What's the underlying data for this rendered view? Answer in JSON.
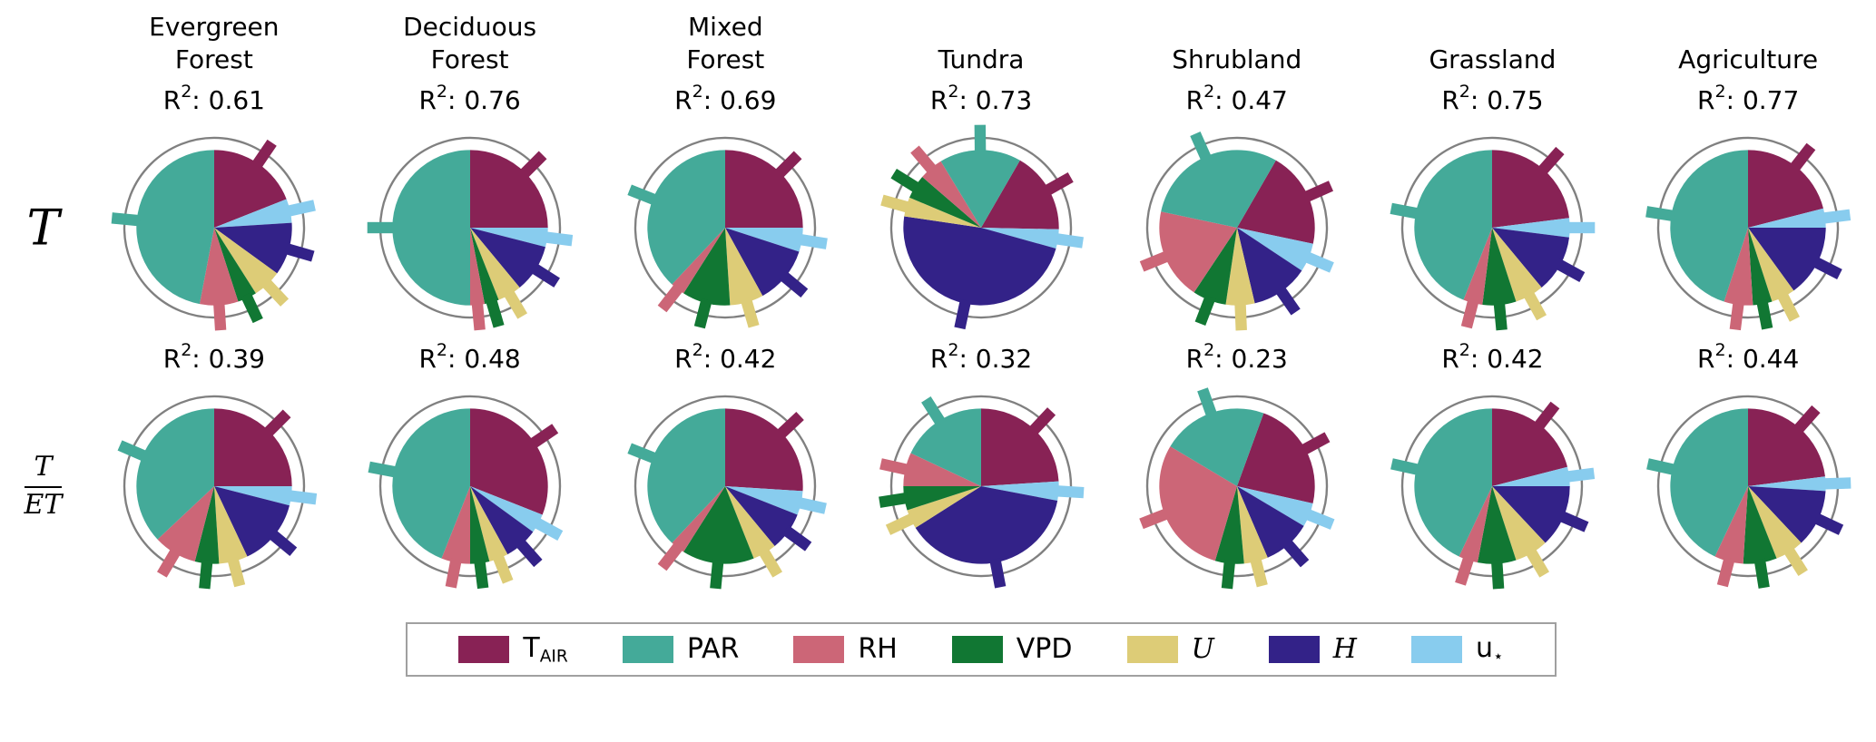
{
  "columns": [
    {
      "label": "Evergreen Forest",
      "lines": [
        "Evergreen",
        "Forest"
      ]
    },
    {
      "label": "Deciduous Forest",
      "lines": [
        "Deciduous",
        "Forest"
      ]
    },
    {
      "label": "Mixed Forest",
      "lines": [
        "Mixed",
        "Forest"
      ]
    },
    {
      "label": "Tundra",
      "lines": [
        "Tundra"
      ]
    },
    {
      "label": "Shrubland",
      "lines": [
        "Shrubland"
      ]
    },
    {
      "label": "Grassland",
      "lines": [
        "Grassland"
      ]
    },
    {
      "label": "Agriculture",
      "lines": [
        "Agriculture"
      ]
    }
  ],
  "rows": [
    {
      "id": "T",
      "format": "simple",
      "label": "T"
    },
    {
      "id": "T-ET",
      "format": "fraction",
      "label": "T/ET",
      "numerator": "T",
      "denominator": "ET"
    }
  ],
  "r2": {
    "prefix": "R",
    "sup": "2",
    "sep": ": "
  },
  "legend": {
    "items": [
      {
        "id": "T_AIR",
        "text": "T",
        "sub": "AIR",
        "italic": false,
        "color": "#882255"
      },
      {
        "id": "PAR",
        "text": "PAR",
        "sub": "",
        "italic": false,
        "color": "#44AA99"
      },
      {
        "id": "RH",
        "text": "RH",
        "sub": "",
        "italic": false,
        "color": "#CC6677"
      },
      {
        "id": "VPD",
        "text": "VPD",
        "sub": "",
        "italic": false,
        "color": "#117733"
      },
      {
        "id": "U",
        "text": "U",
        "sub": "",
        "italic": true,
        "color": "#DDCC77"
      },
      {
        "id": "H",
        "text": "H",
        "sub": "",
        "italic": true,
        "color": "#332288"
      },
      {
        "id": "u_star",
        "text": "u",
        "sub": "⋆",
        "italic": false,
        "color": "#88CCEE"
      }
    ]
  },
  "chart_data": {
    "type": "pie",
    "unit": "percent (approximate relative variable importance)",
    "ring_color": "#808080",
    "palette": {
      "T_AIR": "#882255",
      "PAR": "#44AA99",
      "RH": "#CC6677",
      "VPD": "#117733",
      "U": "#DDCC77",
      "H": "#332288",
      "u*": "#88CCEE"
    },
    "draw_order_clockwise_from_top": [
      "T_AIR",
      "u*",
      "H",
      "U",
      "VPD",
      "RH",
      "PAR"
    ],
    "rows": [
      {
        "row": "T",
        "charts": [
          {
            "column": "Evergreen Forest",
            "r2": "0.61",
            "rotation_deg": 0,
            "values": {
              "T_AIR": 19,
              "PAR": 47,
              "RH": 8,
              "VPD": 4,
              "U": 6,
              "H": 11,
              "u*": 5
            }
          },
          {
            "column": "Deciduous Forest",
            "r2": "0.76",
            "rotation_deg": 0,
            "values": {
              "T_AIR": 25,
              "PAR": 50,
              "RH": 3,
              "VPD": 3,
              "U": 5,
              "H": 10,
              "u*": 4
            }
          },
          {
            "column": "Mixed Forest",
            "r2": "0.69",
            "rotation_deg": 0,
            "values": {
              "T_AIR": 25,
              "PAR": 38,
              "RH": 3,
              "VPD": 10,
              "U": 7,
              "H": 12,
              "u*": 5
            }
          },
          {
            "column": "Tundra",
            "r2": "0.73",
            "rotation_deg": 30,
            "values": {
              "T_AIR": 17,
              "PAR": 17,
              "RH": 5,
              "VPD": 5,
              "U": 4,
              "H": 48,
              "u*": 4
            }
          },
          {
            "column": "Shrubland",
            "r2": "0.47",
            "rotation_deg": 30,
            "values": {
              "T_AIR": 20,
              "PAR": 30,
              "RH": 19,
              "VPD": 7,
              "U": 6,
              "H": 12,
              "u*": 6
            }
          },
          {
            "column": "Grassland",
            "r2": "0.75",
            "rotation_deg": 0,
            "values": {
              "T_AIR": 23,
              "PAR": 44,
              "RH": 4,
              "VPD": 7,
              "U": 6,
              "H": 12,
              "u*": 4
            }
          },
          {
            "column": "Agriculture",
            "r2": "0.77",
            "rotation_deg": 0,
            "values": {
              "T_AIR": 21,
              "PAR": 45,
              "RH": 6,
              "VPD": 4,
              "U": 5,
              "H": 15,
              "u*": 4
            }
          }
        ]
      },
      {
        "row": "T/ET",
        "charts": [
          {
            "column": "Evergreen Forest",
            "r2": "0.39",
            "rotation_deg": 0,
            "values": {
              "T_AIR": 25,
              "PAR": 37,
              "RH": 9,
              "VPD": 5,
              "U": 6,
              "H": 14,
              "u*": 4
            }
          },
          {
            "column": "Deciduous Forest",
            "r2": "0.48",
            "rotation_deg": 0,
            "values": {
              "T_AIR": 31,
              "PAR": 44,
              "RH": 6,
              "VPD": 4,
              "U": 4,
              "H": 7,
              "u*": 4
            }
          },
          {
            "column": "Mixed Forest",
            "r2": "0.42",
            "rotation_deg": 0,
            "values": {
              "T_AIR": 26,
              "PAR": 38,
              "RH": 3,
              "VPD": 15,
              "U": 5,
              "H": 8,
              "u*": 5
            }
          },
          {
            "column": "Tundra",
            "r2": "0.32",
            "rotation_deg": 0,
            "values": {
              "T_AIR": 24,
              "PAR": 18,
              "RH": 7,
              "VPD": 5,
              "U": 4,
              "H": 38,
              "u*": 4
            }
          },
          {
            "column": "Shrubland",
            "r2": "0.23",
            "rotation_deg": 20,
            "values": {
              "T_AIR": 23,
              "PAR": 22,
              "RH": 29,
              "VPD": 6,
              "U": 5,
              "H": 10,
              "u*": 5
            }
          },
          {
            "column": "Grassland",
            "r2": "0.42",
            "rotation_deg": 0,
            "values": {
              "T_AIR": 21,
              "PAR": 43,
              "RH": 4,
              "VPD": 8,
              "U": 7,
              "H": 13,
              "u*": 4
            }
          },
          {
            "column": "Agriculture",
            "r2": "0.44",
            "rotation_deg": 0,
            "values": {
              "T_AIR": 23,
              "PAR": 43,
              "RH": 6,
              "VPD": 7,
              "U": 6,
              "H": 12,
              "u*": 3
            }
          }
        ]
      }
    ]
  }
}
